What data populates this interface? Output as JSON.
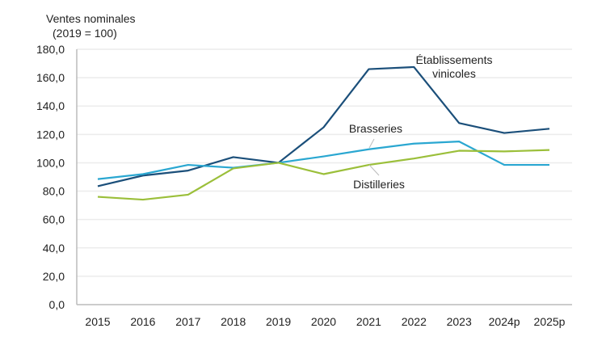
{
  "chart_data": {
    "type": "line",
    "ylabel": "Ventes nominales\n(2019 = 100)",
    "xlabel": "",
    "categories": [
      "2015",
      "2016",
      "2017",
      "2018",
      "2019",
      "2020",
      "2021",
      "2022",
      "2023",
      "2024p",
      "2025p"
    ],
    "ylim": [
      0,
      180
    ],
    "yticks": [
      "0,0",
      "20,0",
      "40,0",
      "60,0",
      "80,0",
      "100,0",
      "120,0",
      "140,0",
      "160,0",
      "180,0"
    ],
    "grid": true,
    "legend": "inline labels",
    "series": [
      {
        "name": "Établissements\nvinicoles",
        "color": "#1b4f7a",
        "values": [
          83.5,
          91,
          94.5,
          104,
          100,
          125,
          166,
          167.5,
          128,
          121,
          124
        ]
      },
      {
        "name": "Brasseries",
        "color": "#2aa7d1",
        "values": [
          88.5,
          92,
          98.5,
          96.5,
          100,
          104.5,
          109.5,
          113.5,
          115,
          98.5,
          98.5
        ]
      },
      {
        "name": "Distilleries",
        "color": "#9bbf3a",
        "values": [
          76,
          74,
          77.5,
          96,
          100,
          92,
          98.5,
          103,
          108.5,
          108,
          109
        ]
      }
    ]
  }
}
